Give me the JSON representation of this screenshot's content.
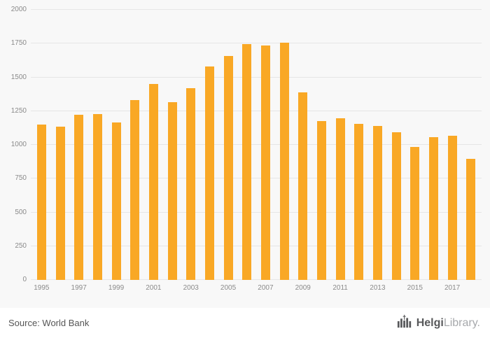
{
  "chart_data": {
    "type": "bar",
    "title": "",
    "xlabel": "",
    "ylabel": "",
    "categories": [
      1995,
      1996,
      1997,
      1998,
      1999,
      2000,
      2001,
      2002,
      2003,
      2004,
      2005,
      2006,
      2007,
      2008,
      2009,
      2010,
      2011,
      2012,
      2013,
      2014,
      2015,
      2016,
      2017,
      2018
    ],
    "values": [
      1150,
      1135,
      1225,
      1230,
      1165,
      1330,
      1450,
      1315,
      1420,
      1580,
      1660,
      1745,
      1735,
      1755,
      1390,
      1175,
      1195,
      1155,
      1140,
      1095,
      985,
      1055,
      1065,
      895
    ],
    "ylim": [
      0,
      2000
    ],
    "ytick_step": 250,
    "ytick_labels": [
      "0",
      "250",
      "500",
      "750",
      "1000",
      "1250",
      "1500",
      "1750",
      "2000"
    ],
    "x_tick_labels": [
      "1995",
      "1997",
      "1999",
      "2001",
      "2003",
      "2005",
      "2007",
      "2009",
      "2011",
      "2013",
      "2015",
      "2017"
    ],
    "bar_color": "#F9A825",
    "grid": true,
    "legend": "none",
    "plot_background": "#f8f8f8"
  },
  "footer": {
    "source_label": "Source: World Bank",
    "logo_bold": "Helgi",
    "logo_light": "Library."
  }
}
